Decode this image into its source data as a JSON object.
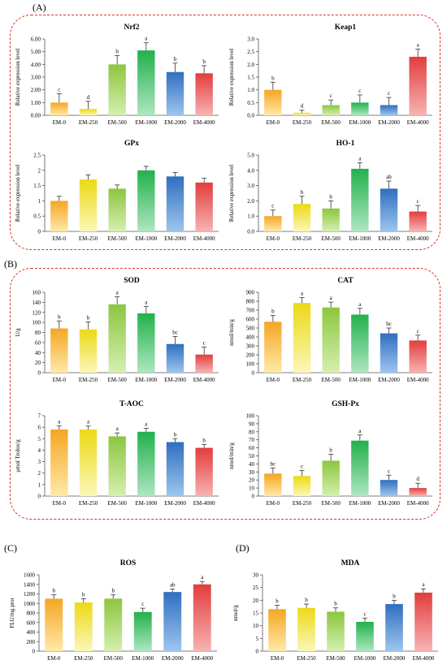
{
  "categories": [
    "EM-0",
    "EM-250",
    "EM-500",
    "EM-1000",
    "EM-2000",
    "EM-4000"
  ],
  "colors": {
    "bar_tops": [
      "#f5a623",
      "#ecd916",
      "#8cc63f",
      "#22b14c",
      "#2f6fc0",
      "#e23d3d"
    ],
    "bar_bottoms": [
      "#ffe9a8",
      "#fbf7b8",
      "#d5efb0",
      "#aee6c1",
      "#9ec5ee",
      "#f7b3b3"
    ],
    "group_border": "#d9342b"
  },
  "panels": {
    "A": "(A)",
    "B": "(B)",
    "C": "(C)",
    "D": "(D)"
  },
  "chart_data": [
    {
      "type": "bar",
      "title": "Nrf2",
      "ylabel": "Relative expression level",
      "ylim": [
        0,
        6
      ],
      "yticks": [
        "0.00",
        "1.00",
        "2.00",
        "3.00",
        "4.00",
        "5.00",
        "6.00"
      ],
      "values": [
        1.0,
        0.5,
        4.0,
        5.1,
        3.4,
        3.3
      ],
      "errors": [
        0.7,
        0.6,
        0.7,
        0.6,
        0.7,
        0.6
      ],
      "letters": [
        "c",
        "d",
        "b",
        "a",
        "b",
        "b"
      ]
    },
    {
      "type": "bar",
      "title": "Keap1",
      "ylabel": "Relative expression level",
      "ylim": [
        0,
        3
      ],
      "yticks": [
        "0.0",
        "0.5",
        "1.0",
        "1.5",
        "2.0",
        "2.5",
        "3.0"
      ],
      "values": [
        1.0,
        0.1,
        0.4,
        0.5,
        0.4,
        2.3
      ],
      "errors": [
        0.3,
        0.1,
        0.2,
        0.3,
        0.3,
        0.3
      ],
      "letters": [
        "b",
        "d",
        "c",
        "c",
        "c",
        "a"
      ]
    },
    {
      "type": "bar",
      "title": "GPx",
      "ylabel": "Relative expression level",
      "ylim": [
        0,
        2.5
      ],
      "yticks": [
        "0",
        "0.5",
        "1",
        "1.5",
        "2",
        "2.5"
      ],
      "values": [
        1.0,
        1.7,
        1.4,
        2.0,
        1.8,
        1.6
      ],
      "errors": [
        0.15,
        0.15,
        0.12,
        0.13,
        0.13,
        0.14
      ],
      "letters": [
        "",
        "",
        "",
        "",
        "",
        ""
      ]
    },
    {
      "type": "bar",
      "title": "HO-1",
      "ylabel": "Relative expression level",
      "ylim": [
        0,
        5
      ],
      "yticks": [
        "0.0",
        "1.0",
        "2.0",
        "3.0",
        "4.0",
        "5.0"
      ],
      "values": [
        1.0,
        1.8,
        1.5,
        4.1,
        2.8,
        1.3
      ],
      "errors": [
        0.4,
        0.5,
        0.5,
        0.4,
        0.5,
        0.4
      ],
      "letters": [
        "c",
        "b",
        "b",
        "a",
        "ab",
        "c"
      ]
    },
    {
      "type": "bar",
      "title": "SOD",
      "ylabel": "U/g",
      "ylim": [
        0,
        160
      ],
      "yticks": [
        "0",
        "20",
        "40",
        "60",
        "80",
        "100",
        "120",
        "140",
        "160"
      ],
      "values": [
        88,
        86,
        136,
        118,
        57,
        36
      ],
      "errors": [
        15,
        15,
        15,
        14,
        15,
        15
      ],
      "letters": [
        "b",
        "b",
        "a",
        "a",
        "bc",
        "c"
      ]
    },
    {
      "type": "bar",
      "title": "CAT",
      "ylabel": "nmol/min/g",
      "ylim": [
        0,
        900
      ],
      "yticks": [
        "0",
        "100",
        "200",
        "300",
        "400",
        "500",
        "600",
        "700",
        "800",
        "900"
      ],
      "values": [
        570,
        780,
        730,
        650,
        440,
        360
      ],
      "errors": [
        70,
        60,
        60,
        70,
        60,
        60
      ],
      "letters": [
        "b",
        "a",
        "a",
        "a",
        "bc",
        "c"
      ]
    },
    {
      "type": "bar",
      "title": "T-AOC",
      "ylabel": "μmol Trolox/g",
      "ylim": [
        0,
        7
      ],
      "yticks": [
        "0",
        "1",
        "2",
        "3",
        "4",
        "5",
        "6",
        "7"
      ],
      "values": [
        5.8,
        5.8,
        5.2,
        5.6,
        4.7,
        4.2
      ],
      "errors": [
        0.3,
        0.3,
        0.3,
        0.3,
        0.3,
        0.3
      ],
      "letters": [
        "a",
        "a",
        "a",
        "a",
        "b",
        "b"
      ]
    },
    {
      "type": "bar",
      "title": "GSH-Px",
      "ylabel": "nmol/min/g",
      "ylim": [
        0,
        100
      ],
      "yticks": [
        "0",
        "10",
        "20",
        "30",
        "40",
        "50",
        "60",
        "70",
        "80",
        "90",
        "100"
      ],
      "values": [
        28,
        25,
        44,
        69,
        20,
        10
      ],
      "errors": [
        7,
        7,
        8,
        7,
        6,
        6
      ],
      "letters": [
        "bc",
        "c",
        "b",
        "a",
        "c",
        "d"
      ]
    },
    {
      "type": "bar",
      "title": "ROS",
      "ylabel": "FLU/mg prot",
      "ylim": [
        0,
        1600
      ],
      "yticks": [
        "0",
        "200",
        "400",
        "600",
        "800",
        "1000",
        "1200",
        "1400",
        "1600"
      ],
      "values": [
        1100,
        1020,
        1100,
        820,
        1240,
        1400
      ],
      "errors": [
        80,
        80,
        80,
        80,
        60,
        60
      ],
      "letters": [
        "b",
        "b",
        "b",
        "c",
        "ab",
        "a"
      ]
    },
    {
      "type": "bar",
      "title": "MDA",
      "ylabel": "nmol/g",
      "ylim": [
        0,
        30
      ],
      "yticks": [
        "0",
        "5",
        "10",
        "15",
        "20",
        "25",
        "30"
      ],
      "values": [
        16.5,
        17,
        15.5,
        11.5,
        18.5,
        23
      ],
      "errors": [
        1.5,
        1.5,
        1.5,
        1.5,
        1.5,
        1.5
      ],
      "letters": [
        "b",
        "b",
        "b",
        "c",
        "b",
        "a"
      ]
    }
  ]
}
